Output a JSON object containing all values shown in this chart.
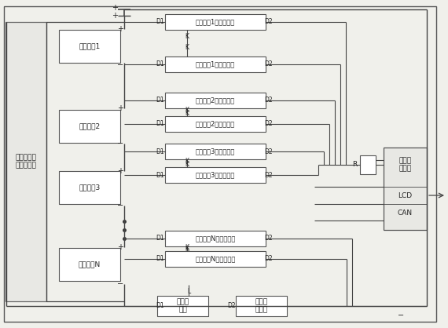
{
  "bg_color": "#f0f0eb",
  "line_color": "#444444",
  "box_color": "#666666",
  "text_color": "#222222",
  "left_module": "镍氢电池电\n压检测模块",
  "right_module_top": "单片机\n控制器",
  "right_sub": [
    "LCD",
    "CAN"
  ],
  "batteries": [
    "镍氢电池1",
    "镍氢电池2",
    "镍氢电池3",
    "镍氢电池N"
  ],
  "cont1": [
    "镍氢电池1第一接触器",
    "镍氢电池2第一接触器",
    "镍氢电池3第一接触器",
    "镍氢电池N第一接触器"
  ],
  "cont2": [
    "镍氢电池1第二接触器",
    "镍氢电池2第二接触器",
    "镍氢电池3第二接触器",
    "镍氢电池N第二接触器"
  ],
  "dc_label": "直流接\n触器",
  "fuse_label": "自恢复\n保险丝",
  "R_label": "R"
}
